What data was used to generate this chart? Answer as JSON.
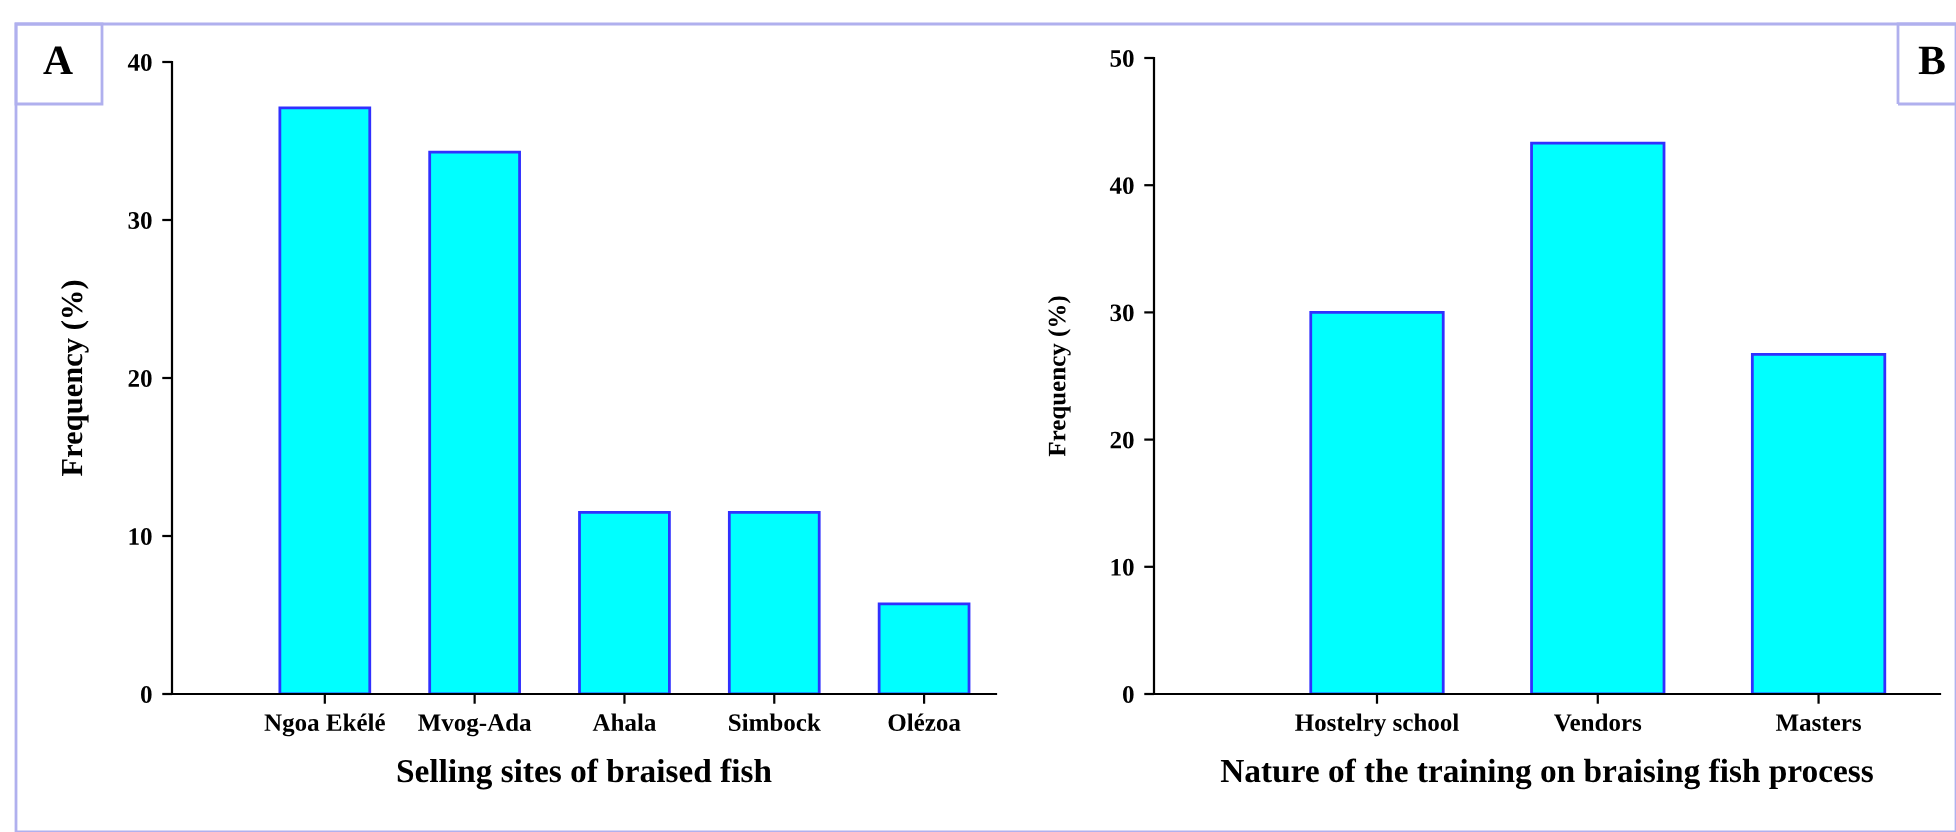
{
  "chart_data": [
    {
      "type": "bar",
      "xlabel": "Selling sites of braised fish",
      "ylabel": "Frequency (%)",
      "annotations": [
        "A"
      ],
      "categories": [
        "Ngoa Ekélé",
        "Mvog-Ada",
        "Ahala",
        "Simbock",
        "Olézoa"
      ],
      "values": [
        37.1,
        34.3,
        11.5,
        11.5,
        5.7
      ],
      "color": "#00ffff",
      "ylim": [
        0,
        40
      ],
      "yticks": [
        0,
        10,
        20,
        30,
        40
      ],
      "grid": false,
      "legend": false
    },
    {
      "type": "bar",
      "xlabel": "Nature of the training on braising fish process",
      "ylabel": "Frequency (%)",
      "annotations": [
        "B"
      ],
      "categories": [
        "Hostelry school",
        "Vendors",
        "Masters"
      ],
      "values": [
        30.0,
        43.3,
        26.7
      ],
      "color": "#00ffff",
      "ylim": [
        0,
        50
      ],
      "yticks": [
        0,
        10,
        20,
        30,
        40,
        50
      ],
      "grid": false,
      "legend": false
    }
  ]
}
